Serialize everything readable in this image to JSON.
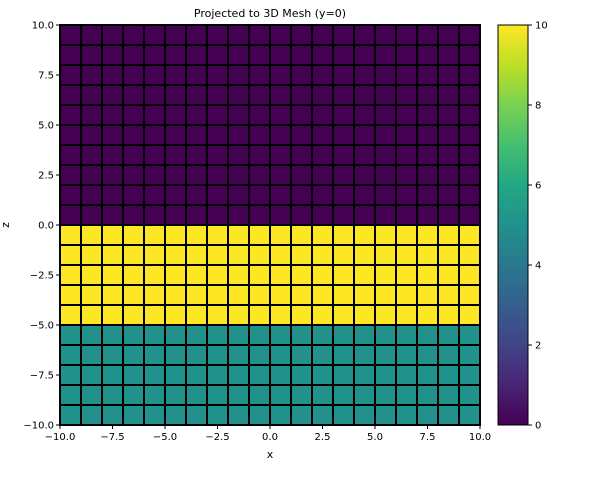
{
  "chart_data": {
    "type": "heatmap",
    "title": "Projected to 3D Mesh (y=0)",
    "xlabel": "x",
    "ylabel": "z",
    "xlim": [
      -10,
      10
    ],
    "ylim": [
      -10,
      10
    ],
    "x_ticks": [
      "−10.0",
      "−7.5",
      "−5.0",
      "−2.5",
      "0.0",
      "2.5",
      "5.0",
      "7.5",
      "10.0"
    ],
    "y_ticks": [
      "−10.0",
      "−7.5",
      "−5.0",
      "−2.5",
      "0.0",
      "2.5",
      "5.0",
      "7.5",
      "10.0"
    ],
    "x_tick_values": [
      -10,
      -7.5,
      -5,
      -2.5,
      0,
      2.5,
      5,
      7.5,
      10
    ],
    "y_tick_values": [
      -10,
      -7.5,
      -5,
      -2.5,
      0,
      2.5,
      5,
      7.5,
      10
    ],
    "x_edges_range": [
      -10,
      10,
      1
    ],
    "z_edges_range": [
      -10,
      10,
      1
    ],
    "cell_values_by_z_band": [
      {
        "z_range": [
          -10,
          -5
        ],
        "value": 5
      },
      {
        "z_range": [
          -5,
          0
        ],
        "value": 10
      },
      {
        "z_range": [
          0,
          10
        ],
        "value": 0
      }
    ],
    "cell_edge_color": "#000000",
    "colormap": "viridis",
    "colorbar": {
      "range": [
        0,
        10
      ],
      "ticks": [
        "0",
        "2",
        "4",
        "6",
        "8",
        "10"
      ],
      "tick_values": [
        0,
        2,
        4,
        6,
        8,
        10
      ]
    },
    "grid": false
  }
}
